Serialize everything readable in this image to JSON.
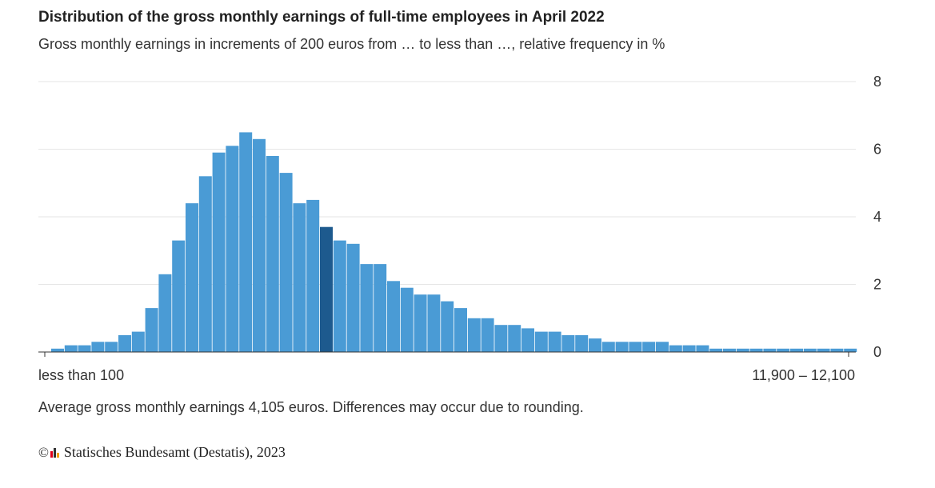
{
  "title": "Distribution of the gross monthly earnings of full-time employees in April 2022",
  "subtitle": "Gross monthly earnings in increments of 200 euros from … to less than …, relative frequency in %",
  "note": "Average gross monthly earnings 4,105 euros. Differences may occur due to rounding.",
  "source": {
    "copyright_symbol": "©",
    "logo_icon": "destatis-logo-icon",
    "text": "Statisches Bundesamt (Destatis), 2023"
  },
  "colors": {
    "bar": "#4a9bd5",
    "highlight_bar": "#1d5a8e",
    "grid": "#e6e6e6",
    "axis": "#333333"
  },
  "chart_data": {
    "type": "bar",
    "title": "Distribution of the gross monthly earnings of full-time employees in April 2022",
    "subtitle": "Gross monthly earnings in increments of 200 euros from … to less than …, relative frequency in %",
    "x_first_label": "less than 100",
    "x_last_label": "11,900 – 12,100",
    "y_ticks": [
      0,
      2,
      4,
      6,
      8
    ],
    "ylim": [
      0,
      8
    ],
    "y_axis_side": "right",
    "grid": true,
    "highlight_index": 20,
    "values": [
      0.1,
      0.2,
      0.2,
      0.3,
      0.3,
      0.5,
      0.6,
      1.3,
      2.3,
      3.3,
      4.4,
      5.2,
      5.9,
      6.1,
      6.5,
      6.3,
      5.8,
      5.3,
      4.4,
      4.5,
      3.7,
      3.3,
      3.2,
      2.6,
      2.6,
      2.1,
      1.9,
      1.7,
      1.7,
      1.5,
      1.3,
      1.0,
      1.0,
      0.8,
      0.8,
      0.7,
      0.6,
      0.6,
      0.5,
      0.5,
      0.4,
      0.3,
      0.3,
      0.3,
      0.3,
      0.3,
      0.2,
      0.2,
      0.2,
      0.1,
      0.1,
      0.1,
      0.1,
      0.1,
      0.1,
      0.1,
      0.1,
      0.1,
      0.1,
      0.1
    ]
  }
}
